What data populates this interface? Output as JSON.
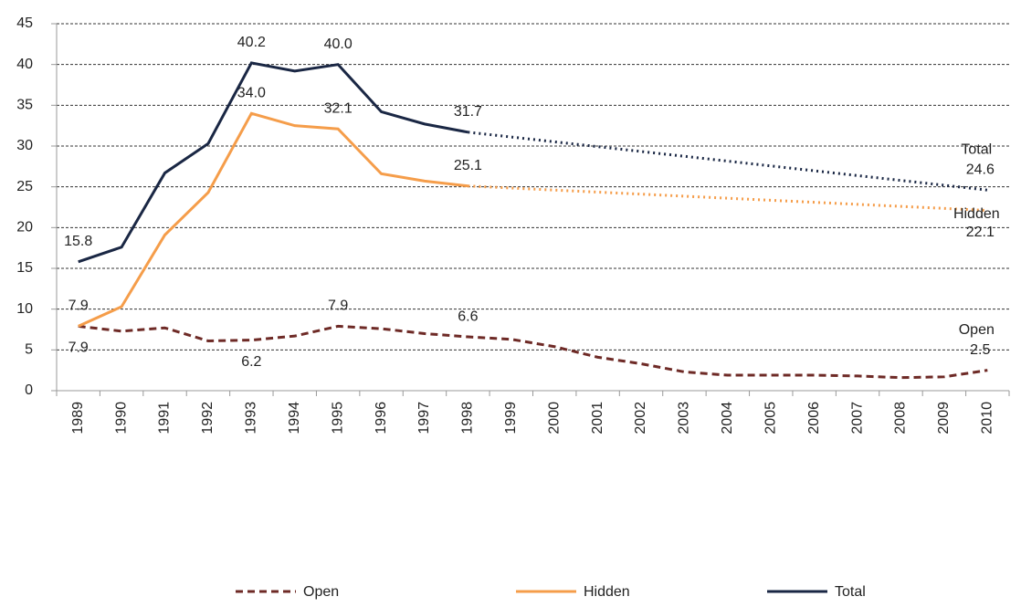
{
  "chart_data": {
    "type": "line",
    "categories": [
      "1989",
      "1990",
      "1991",
      "1992",
      "1993",
      "1994",
      "1995",
      "1996",
      "1997",
      "1998",
      "1999",
      "2000",
      "2001",
      "2002",
      "2003",
      "2004",
      "2005",
      "2006",
      "2007",
      "2008",
      "2009",
      "2010"
    ],
    "series": [
      {
        "name": "Open",
        "color": "#6e2a26",
        "dash": "dashed",
        "gap_style": "dotted",
        "values": [
          7.9,
          7.3,
          7.7,
          6.1,
          6.2,
          6.7,
          7.9,
          7.6,
          7.0,
          6.6,
          6.3,
          5.4,
          4.1,
          3.3,
          2.3,
          1.9,
          1.9,
          1.9,
          1.8,
          1.6,
          1.7,
          2.5
        ],
        "value_labels": [
          "7.9",
          null,
          null,
          null,
          "6.2",
          null,
          "7.9",
          null,
          null,
          "6.6",
          null,
          null,
          null,
          null,
          null,
          null,
          null,
          null,
          null,
          null,
          null,
          "2.5"
        ]
      },
      {
        "name": "Hidden",
        "color": "#f59d4a",
        "dash": "solid",
        "gap_style": "dotted",
        "values": [
          7.9,
          10.3,
          19.1,
          24.3,
          34.0,
          32.5,
          32.1,
          26.6,
          25.7,
          25.1,
          null,
          null,
          null,
          null,
          null,
          null,
          null,
          null,
          null,
          null,
          null,
          22.1
        ],
        "value_labels": [
          "7.9",
          null,
          null,
          null,
          "34.0",
          null,
          "32.1",
          null,
          null,
          "25.1",
          null,
          null,
          null,
          null,
          null,
          null,
          null,
          null,
          null,
          null,
          null,
          "22.1"
        ]
      },
      {
        "name": "Total",
        "color": "#1a2744",
        "dash": "solid",
        "gap_style": "dotted",
        "values": [
          15.8,
          17.6,
          26.7,
          30.3,
          40.2,
          39.2,
          40.0,
          34.2,
          32.7,
          31.7,
          null,
          null,
          null,
          null,
          null,
          null,
          null,
          null,
          null,
          null,
          null,
          24.6
        ],
        "value_labels": [
          "15.8",
          null,
          null,
          null,
          "40.2",
          null,
          "40.0",
          null,
          null,
          "31.7",
          null,
          null,
          null,
          null,
          null,
          null,
          null,
          null,
          null,
          null,
          null,
          "24.6"
        ]
      }
    ],
    "ylim": [
      0,
      45
    ],
    "yticks": [
      0,
      5,
      10,
      15,
      20,
      25,
      30,
      35,
      40,
      45
    ],
    "grid": true,
    "legend": "bottom"
  }
}
